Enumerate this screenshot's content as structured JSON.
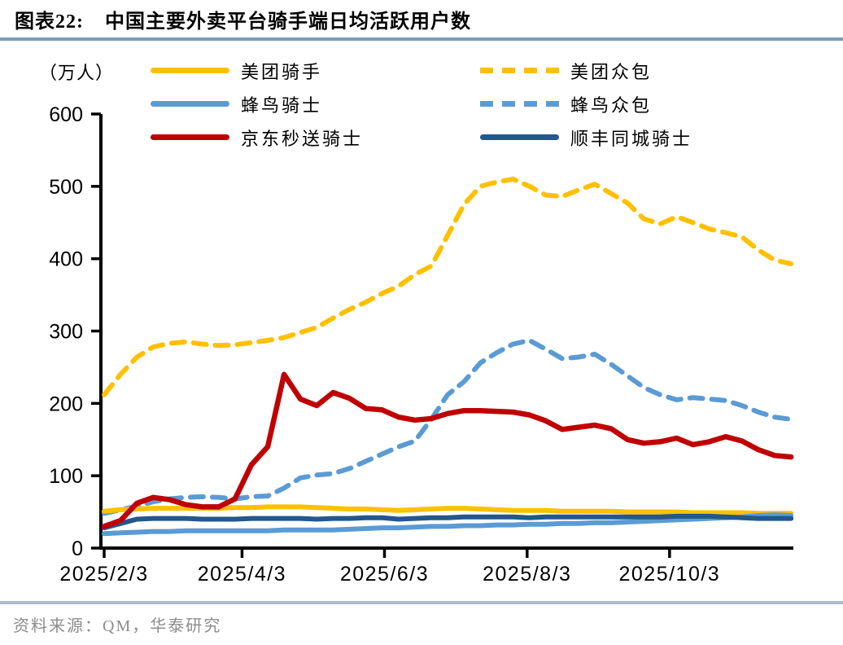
{
  "header": {
    "title_prefix": "图表22:",
    "title_text": "中国主要外卖平台骑手端日均活跃用户数"
  },
  "source": {
    "label": "资料来源：QM，华泰研究"
  },
  "colors": {
    "axis": "#000000",
    "title_rule": "#7E9BBB",
    "footer_rule": "#A9BDD1",
    "source_text": "#8C8C8C"
  },
  "chart_data": {
    "type": "line",
    "unit_label": "（万人）",
    "y_axis": {
      "min": 0,
      "max": 600,
      "tick_step": 100,
      "tick_labels": [
        "0",
        "100",
        "200",
        "300",
        "400",
        "500",
        "600"
      ]
    },
    "x_axis": {
      "start_date": "2025/2/3",
      "frequency": "weekly",
      "ticks": [
        {
          "label": "2025/2/3",
          "week": 0
        },
        {
          "label": "2025/4/3",
          "week": 8.43
        },
        {
          "label": "2025/6/3",
          "week": 17.14
        },
        {
          "label": "2025/8/3",
          "week": 25.86
        },
        {
          "label": "2025/10/3",
          "week": 34.57
        }
      ]
    },
    "series": [
      {
        "id": "meituan-rider",
        "name": "美团骑手",
        "color": "#FFC000",
        "dash": false,
        "values": [
          51,
          53,
          54,
          55,
          55,
          55,
          55,
          55,
          56,
          56,
          57,
          57,
          57,
          56,
          55,
          54,
          54,
          53,
          52,
          53,
          54,
          55,
          55,
          54,
          53,
          52,
          52,
          52,
          51,
          51,
          51,
          51,
          50,
          50,
          50,
          50,
          49,
          49,
          49,
          49,
          48,
          48,
          48
        ]
      },
      {
        "id": "meituan-zhongbao",
        "name": "美团众包",
        "color": "#FFC000",
        "dash": true,
        "values": [
          212,
          240,
          264,
          278,
          283,
          285,
          282,
          280,
          281,
          284,
          287,
          291,
          298,
          305,
          318,
          330,
          340,
          352,
          362,
          378,
          390,
          432,
          475,
          500,
          506,
          510,
          500,
          488,
          486,
          495,
          503,
          490,
          477,
          455,
          448,
          458,
          450,
          441,
          436,
          430,
          412,
          398,
          393
        ]
      },
      {
        "id": "fengniao-rider",
        "name": "蜂鸟骑士",
        "color": "#5B9BD5",
        "dash": false,
        "values": [
          20,
          21,
          22,
          23,
          23,
          24,
          24,
          24,
          24,
          24,
          24,
          25,
          25,
          25,
          25,
          26,
          27,
          28,
          28,
          29,
          30,
          30,
          31,
          31,
          32,
          32,
          33,
          33,
          34,
          34,
          35,
          35,
          36,
          37,
          38,
          39,
          40,
          41,
          42,
          43,
          45,
          46,
          45
        ]
      },
      {
        "id": "fengniao-zhongbao",
        "name": "蜂鸟众包",
        "color": "#5B9BD5",
        "dash": true,
        "values": [
          48,
          53,
          58,
          64,
          68,
          70,
          71,
          70,
          68,
          71,
          72,
          83,
          97,
          101,
          103,
          110,
          120,
          130,
          140,
          148,
          178,
          212,
          230,
          256,
          270,
          282,
          287,
          275,
          262,
          264,
          268,
          254,
          238,
          222,
          212,
          205,
          208,
          206,
          204,
          197,
          188,
          181,
          178
        ]
      },
      {
        "id": "jd-miaosong-rider",
        "name": "京东秒送骑士",
        "color": "#C00000",
        "dash": false,
        "values": [
          30,
          38,
          62,
          70,
          67,
          60,
          57,
          57,
          68,
          115,
          140,
          240,
          206,
          197,
          215,
          207,
          193,
          191,
          181,
          177,
          179,
          186,
          190,
          190,
          189,
          188,
          184,
          176,
          164,
          167,
          170,
          165,
          150,
          145,
          147,
          152,
          143,
          147,
          154,
          148,
          136,
          128,
          126
        ]
      },
      {
        "id": "sf-tongcheng-rider",
        "name": "顺丰同城骑士",
        "color": "#24578B",
        "dash": false,
        "values": [
          28,
          34,
          40,
          41,
          41,
          41,
          40,
          40,
          40,
          41,
          41,
          41,
          41,
          40,
          41,
          41,
          42,
          42,
          40,
          41,
          42,
          42,
          43,
          43,
          43,
          43,
          42,
          43,
          43,
          43,
          43,
          43,
          43,
          43,
          43,
          44,
          44,
          44,
          43,
          42,
          41,
          41,
          41
        ]
      }
    ],
    "legend_order": [
      "美团骑手",
      "美团众包",
      "蜂鸟骑士",
      "蜂鸟众包",
      "京东秒送骑士",
      "顺丰同城骑士"
    ]
  }
}
